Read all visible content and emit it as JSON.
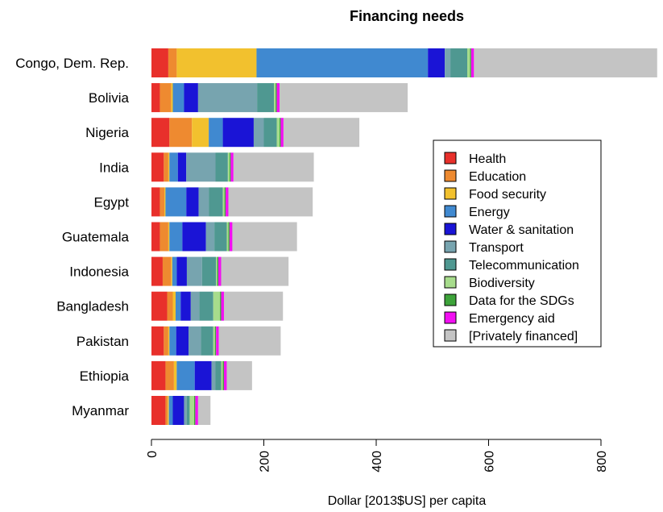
{
  "chart_data": {
    "type": "bar",
    "orientation": "horizontal",
    "stacked": true,
    "title": "Financing needs",
    "xlabel": "Dollar [2013$US] per capita",
    "ylabel": "",
    "xlim": [
      0,
      800
    ],
    "xticks": [
      0,
      200,
      400,
      600,
      800
    ],
    "grid": false,
    "legend_position": "right",
    "categories": [
      "Congo, Dem. Rep.",
      "Bolivia",
      "Nigeria",
      "India",
      "Egypt",
      "Guatemala",
      "Indonesia",
      "Bangladesh",
      "Pakistan",
      "Ethiopia",
      "Myanmar"
    ],
    "series": [
      {
        "name": "Health",
        "color": "#e8302b",
        "values": [
          30,
          15,
          32,
          22,
          15,
          15,
          20,
          28,
          22,
          25,
          25
        ]
      },
      {
        "name": "Education",
        "color": "#ee8a30",
        "values": [
          15,
          20,
          40,
          8,
          8,
          15,
          15,
          10,
          8,
          15,
          4
        ]
      },
      {
        "name": "Food security",
        "color": "#f2c12e",
        "values": [
          142,
          3,
          30,
          2,
          2,
          2,
          2,
          5,
          2,
          5,
          2
        ]
      },
      {
        "name": "Energy",
        "color": "#4089d0",
        "values": [
          305,
          20,
          25,
          15,
          37,
          23,
          8,
          9,
          12,
          32,
          7
        ]
      },
      {
        "name": "Water & sanitation",
        "color": "#1a14d6",
        "values": [
          30,
          25,
          55,
          15,
          22,
          42,
          18,
          18,
          22,
          30,
          20
        ]
      },
      {
        "name": "Transport",
        "color": "#77a4af",
        "values": [
          10,
          105,
          18,
          52,
          18,
          15,
          27,
          15,
          22,
          7,
          5
        ]
      },
      {
        "name": "Telecommunication",
        "color": "#4f9891",
        "values": [
          30,
          30,
          23,
          22,
          25,
          22,
          25,
          25,
          22,
          10,
          5
        ]
      },
      {
        "name": "Biodiversity",
        "color": "#a7dc8c",
        "values": [
          5,
          3,
          5,
          3,
          3,
          3,
          2,
          12,
          3,
          3,
          8
        ]
      },
      {
        "name": "Data for the SDGs",
        "color": "#3da33a",
        "values": [
          2,
          2,
          2,
          2,
          2,
          2,
          2,
          2,
          2,
          2,
          2
        ]
      },
      {
        "name": "Emergency aid",
        "color": "#f20ff2",
        "values": [
          5,
          5,
          5,
          5,
          5,
          5,
          5,
          5,
          5,
          5,
          5
        ]
      },
      {
        "name": "[Privately financed]",
        "color": "#c4c4c4",
        "values": [
          326,
          228,
          135,
          143,
          150,
          115,
          120,
          105,
          110,
          45,
          22
        ]
      }
    ]
  }
}
